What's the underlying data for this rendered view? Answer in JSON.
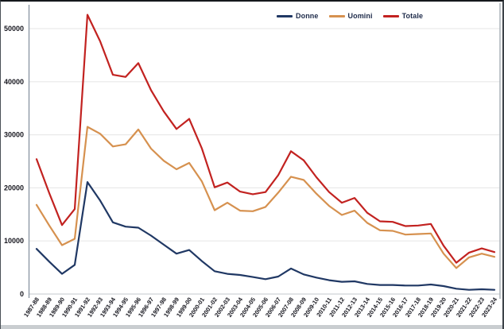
{
  "chart_data": {
    "type": "line",
    "title": "",
    "xlabel": "",
    "ylabel": "",
    "categories": [
      "1987-88",
      "1988-89",
      "1989-90",
      "1990-91",
      "1991-92",
      "1992-93",
      "1993-94",
      "1994-95",
      "1995-96",
      "1996-97",
      "1997-98",
      "1998-99",
      "1999-00",
      "2000-01",
      "2001-02",
      "2002-03",
      "2003-04",
      "2004-05",
      "2005-06",
      "2006-07",
      "2007-08",
      "2008-09",
      "2009-10",
      "2010-11",
      "2011-12",
      "2012-13",
      "2013-14",
      "2014-15",
      "2015-16",
      "2016-17",
      "2017-18",
      "2018-19",
      "2019-20",
      "2020-21",
      "2021-22",
      "2022-23",
      "2023-24"
    ],
    "series": [
      {
        "name": "Donne",
        "color": "#203864",
        "values": [
          8500,
          6100,
          3800,
          5500,
          21100,
          17600,
          13500,
          12700,
          12500,
          11000,
          9300,
          7600,
          8300,
          6200,
          4300,
          3800,
          3600,
          3200,
          2800,
          3300,
          4800,
          3700,
          3100,
          2600,
          2300,
          2400,
          1900,
          1700,
          1700,
          1600,
          1600,
          1800,
          1500,
          1000,
          800,
          900,
          800
        ]
      },
      {
        "name": "Uomini",
        "color": "#d6914f",
        "values": [
          16800,
          12900,
          9200,
          10400,
          31500,
          30200,
          27800,
          28200,
          31000,
          27400,
          25100,
          23500,
          24700,
          21200,
          15800,
          17200,
          15700,
          15600,
          16400,
          19100,
          22100,
          21500,
          18900,
          16600,
          14900,
          15700,
          13400,
          12000,
          11900,
          11200,
          11300,
          11400,
          7600,
          4900,
          6900,
          7600,
          7000
        ]
      },
      {
        "name": "Totale",
        "color": "#c22220",
        "values": [
          25400,
          19000,
          13000,
          16000,
          52600,
          47600,
          41300,
          40900,
          43500,
          38400,
          34400,
          31100,
          33000,
          27400,
          20100,
          21000,
          19300,
          18800,
          19200,
          22400,
          26900,
          25200,
          22000,
          19200,
          17200,
          18100,
          15300,
          13700,
          13600,
          12800,
          12900,
          13200,
          9100,
          5900,
          7800,
          8600,
          7900
        ]
      }
    ],
    "y_ticks": [
      0,
      10000,
      20000,
      30000,
      40000,
      50000
    ],
    "ylim": [
      0,
      55000
    ],
    "grid": "horizontal",
    "legend_position": "top-center"
  },
  "colors": {
    "gridline": "#e9e9e9",
    "zero_axis": "#cfd4d8",
    "y_axis_line": "#8e9aa6",
    "right_border": "#aab2b9",
    "tick_text": "#17171f",
    "legend_text": "#1e2b4a",
    "bottom_strip": "#c9cdd0"
  }
}
